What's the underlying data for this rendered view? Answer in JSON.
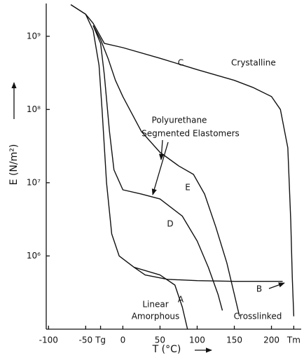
{
  "chart_data": {
    "type": "line",
    "xlabel": "T (°C)",
    "ylabel": "E (N/m²)",
    "log_y": true,
    "grid": false,
    "color": "#111111",
    "xlim": [
      -105,
      240
    ],
    "ylim": [
      100000,
      2800000000
    ],
    "xticks": [
      -100,
      -50,
      {
        "value": -30,
        "label": "Tg"
      },
      0,
      50,
      100,
      150,
      200,
      {
        "value": 230,
        "label": "Tm"
      }
    ],
    "yticks": [
      {
        "value": 1000000,
        "label": "10⁶"
      },
      {
        "value": 10000000,
        "label": "10⁷"
      },
      {
        "value": 100000000,
        "label": "10⁸"
      },
      {
        "value": 1000000000,
        "label": "10⁹"
      }
    ],
    "series": [
      {
        "name": "A",
        "x": [
          -70,
          -50,
          -40,
          -32,
          -28,
          -22,
          -15,
          -5,
          15,
          50,
          70,
          80,
          87
        ],
        "values": [
          2700000000,
          2000000000,
          1200000000,
          400000000,
          100000000,
          10000000,
          2000000,
          1000000,
          700000,
          550000,
          400000,
          200000,
          100000
        ]
      },
      {
        "name": "B",
        "x": [
          15,
          30,
          60,
          100,
          150,
          215
        ],
        "values": [
          700000,
          550000,
          480000,
          460000,
          450000,
          450000
        ]
      },
      {
        "name": "C",
        "x": [
          -70,
          -50,
          -40,
          -25,
          0,
          50,
          100,
          150,
          175,
          200,
          212,
          222,
          226,
          228,
          230
        ],
        "values": [
          2700000000,
          2000000000,
          1500000000,
          800000000,
          700000000,
          500000000,
          350000000,
          250000000,
          200000000,
          150000000,
          100000000,
          30000000,
          3000000,
          500000,
          150000
        ]
      },
      {
        "name": "D",
        "x": [
          -40,
          -30,
          -25,
          -18,
          -12,
          0,
          25,
          50,
          80,
          100,
          115,
          128,
          134
        ],
        "values": [
          1400000000,
          800000000,
          300000000,
          50000000,
          15000000,
          8000000,
          7000000,
          6000000,
          3500000,
          1600000,
          700000,
          300000,
          180000
        ]
      },
      {
        "name": "E",
        "x": [
          -40,
          -30,
          -20,
          -10,
          0,
          25,
          50,
          75,
          95,
          110,
          125,
          140,
          150,
          157
        ],
        "values": [
          1400000000,
          900000000,
          500000000,
          250000000,
          150000000,
          50000000,
          26000000,
          17000000,
          13000000,
          7000000,
          2500000,
          800000,
          300000,
          150000
        ]
      }
    ],
    "annotations": [
      "Crystalline",
      "Polyurethane",
      "Segmented Elastomers",
      "Linear",
      "Amorphous",
      "Crosslinked"
    ]
  }
}
